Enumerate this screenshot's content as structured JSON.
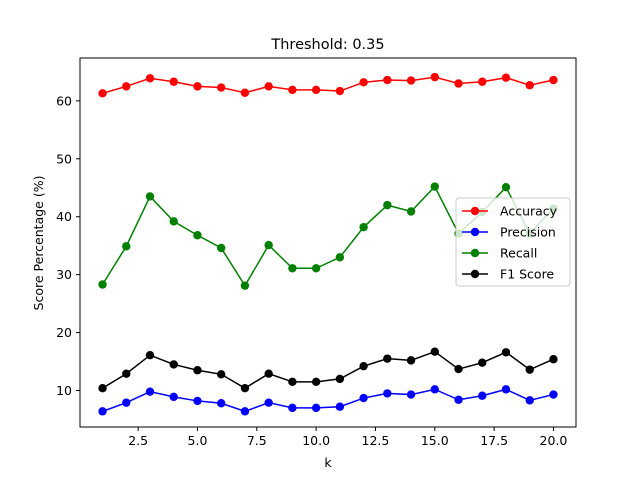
{
  "chart_data": {
    "type": "line",
    "title": "Threshold: 0.35",
    "xlabel": "k",
    "ylabel": "Score Percentage (%)",
    "xlim": [
      0.05,
      20.95
    ],
    "ylim": [
      3.7,
      67.4
    ],
    "xticks": [
      2.5,
      5.0,
      7.5,
      10.0,
      12.5,
      15.0,
      17.5,
      20.0
    ],
    "xtick_labels": [
      "2.5",
      "5.0",
      "7.5",
      "10.0",
      "12.5",
      "15.0",
      "17.5",
      "20.0"
    ],
    "yticks": [
      10,
      20,
      30,
      40,
      50,
      60
    ],
    "ytick_labels": [
      "10",
      "20",
      "30",
      "40",
      "50",
      "60"
    ],
    "legend_position": "center-right",
    "grid": false,
    "x": [
      1,
      2,
      3,
      4,
      5,
      6,
      7,
      8,
      9,
      10,
      11,
      12,
      13,
      14,
      15,
      16,
      17,
      18,
      19,
      20
    ],
    "series": [
      {
        "name": "Accuracy",
        "color": "#ff0000",
        "values": [
          61.3,
          62.5,
          63.9,
          63.3,
          62.5,
          62.3,
          61.4,
          62.5,
          61.9,
          61.9,
          61.7,
          63.2,
          63.6,
          63.5,
          64.1,
          63.0,
          63.3,
          64.0,
          62.7,
          63.6
        ]
      },
      {
        "name": "Precision",
        "color": "#0000ff",
        "values": [
          6.4,
          7.9,
          9.8,
          8.9,
          8.2,
          7.8,
          6.4,
          7.9,
          7.0,
          7.0,
          7.2,
          8.7,
          9.5,
          9.3,
          10.2,
          8.4,
          9.1,
          10.2,
          8.3,
          9.3
        ]
      },
      {
        "name": "Recall",
        "color": "#008000",
        "values": [
          28.3,
          34.9,
          43.5,
          39.2,
          36.8,
          34.6,
          28.1,
          35.1,
          31.1,
          31.1,
          33.0,
          38.2,
          42.0,
          40.9,
          45.2,
          37.1,
          40.8,
          45.1,
          37.1,
          41.4
        ]
      },
      {
        "name": "F1 Score",
        "color": "#000000",
        "values": [
          10.4,
          12.9,
          16.1,
          14.5,
          13.5,
          12.8,
          10.4,
          12.9,
          11.5,
          11.5,
          12.0,
          14.2,
          15.5,
          15.2,
          16.7,
          13.7,
          14.8,
          16.6,
          13.6,
          15.4
        ]
      }
    ]
  }
}
